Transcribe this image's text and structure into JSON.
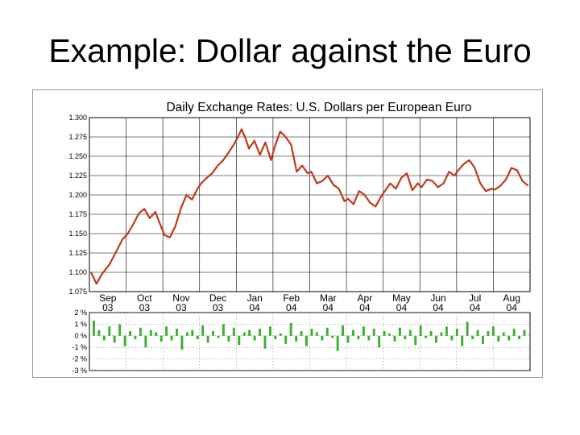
{
  "slide": {
    "title": "Example: Dollar against the Euro"
  },
  "chart_data": [
    {
      "type": "line",
      "title": "Daily Exchange Rates: U.S. Dollars per European Euro",
      "xlabel": "",
      "ylabel": "",
      "ylim": [
        1.075,
        1.3
      ],
      "ytick_labels": [
        "1.300",
        "1.275",
        "1.250",
        "1.225",
        "1.200",
        "1.175",
        "1.150",
        "1.125",
        "1.100",
        "1.075"
      ],
      "ytick_values": [
        1.3,
        1.275,
        1.25,
        1.225,
        1.2,
        1.175,
        1.15,
        1.125,
        1.1,
        1.075
      ],
      "month_labels": [
        {
          "month": "Sep",
          "year": "03"
        },
        {
          "month": "Oct",
          "year": "03"
        },
        {
          "month": "Nov",
          "year": "03"
        },
        {
          "month": "Dec",
          "year": "03"
        },
        {
          "month": "Jan",
          "year": "04"
        },
        {
          "month": "Feb",
          "year": "04"
        },
        {
          "month": "Mar",
          "year": "04"
        },
        {
          "month": "Apr",
          "year": "04"
        },
        {
          "month": "May",
          "year": "04"
        },
        {
          "month": "Jun",
          "year": "04"
        },
        {
          "month": "Jul",
          "year": "04"
        },
        {
          "month": "Aug",
          "year": "04"
        }
      ],
      "grid": true,
      "line_color": "#c0391b",
      "series": [
        {
          "x": [
            0,
            0.15,
            0.3,
            0.5,
            0.7,
            0.85,
            1,
            1.15,
            1.3,
            1.45,
            1.6,
            1.75,
            1.9,
            2,
            2.15,
            2.3,
            2.45,
            2.6,
            2.75,
            2.9,
            3,
            3.15,
            3.3,
            3.45,
            3.6,
            3.75,
            3.9,
            4,
            4.1,
            4.2,
            4.3,
            4.45,
            4.6,
            4.75,
            4.9,
            5,
            5.15,
            5.3,
            5.45,
            5.6,
            5.75,
            5.9,
            6,
            6.15,
            6.3,
            6.45,
            6.6,
            6.75,
            6.9,
            7,
            7.15,
            7.3,
            7.45,
            7.6,
            7.75,
            7.9,
            8,
            8.15,
            8.3,
            8.45,
            8.6,
            8.75,
            8.9,
            9,
            9.15,
            9.3,
            9.45,
            9.6,
            9.75,
            9.9,
            10,
            10.15,
            10.3,
            10.45,
            10.6,
            10.75,
            10.9,
            11,
            11.15,
            11.3,
            11.45,
            11.6,
            11.75,
            11.9
          ],
          "y": [
            1.1,
            1.085,
            1.098,
            1.11,
            1.128,
            1.142,
            1.15,
            1.162,
            1.176,
            1.182,
            1.17,
            1.178,
            1.16,
            1.148,
            1.145,
            1.16,
            1.183,
            1.2,
            1.194,
            1.208,
            1.215,
            1.222,
            1.228,
            1.238,
            1.245,
            1.255,
            1.266,
            1.275,
            1.285,
            1.274,
            1.26,
            1.27,
            1.252,
            1.268,
            1.245,
            1.262,
            1.282,
            1.275,
            1.265,
            1.23,
            1.238,
            1.228,
            1.23,
            1.215,
            1.218,
            1.225,
            1.213,
            1.208,
            1.192,
            1.195,
            1.188,
            1.205,
            1.2,
            1.19,
            1.185,
            1.198,
            1.205,
            1.215,
            1.208,
            1.222,
            1.228,
            1.206,
            1.215,
            1.21,
            1.22,
            1.218,
            1.21,
            1.215,
            1.23,
            1.225,
            1.232,
            1.24,
            1.245,
            1.235,
            1.215,
            1.205,
            1.208,
            1.207,
            1.212,
            1.22,
            1.235,
            1.232,
            1.218,
            1.212
          ]
        }
      ]
    },
    {
      "type": "bar",
      "title": "",
      "xlabel": "",
      "ylabel": "",
      "ylim": [
        -3,
        2
      ],
      "ytick_labels": [
        "2 %",
        "1 %",
        "0 %",
        "-1 %",
        "-2 %",
        "-3 %"
      ],
      "ytick_values": [
        2,
        1,
        0,
        -1,
        -2,
        -3
      ],
      "bar_color": "#3ab02e",
      "values": [
        1.3,
        0.5,
        -0.4,
        0.8,
        -0.6,
        1.0,
        -0.9,
        0.4,
        -0.3,
        0.7,
        -1.0,
        0.5,
        0.3,
        -0.5,
        0.8,
        -0.4,
        0.6,
        -1.2,
        0.3,
        0.5,
        -0.3,
        0.9,
        -0.6,
        0.4,
        -0.2,
        1.0,
        -0.5,
        0.7,
        -0.8,
        0.3,
        0.5,
        -0.4,
        0.6,
        -1.1,
        0.8,
        -0.3,
        0.2,
        -0.7,
        1.1,
        -0.5,
        0.4,
        -0.9,
        0.6,
        0.3,
        -0.4,
        0.7,
        -0.2,
        -1.3,
        0.9,
        -0.6,
        0.5,
        -0.3,
        0.8,
        -0.4,
        0.6,
        -1.0,
        0.4,
        0.2,
        -0.5,
        0.7,
        -0.3,
        0.5,
        -0.8,
        0.9,
        -0.2,
        0.4,
        -0.6,
        0.3,
        0.8,
        -0.4,
        0.6,
        -0.9,
        1.2,
        -0.3,
        0.5,
        -0.7,
        0.4,
        0.8,
        -0.5,
        0.3,
        -0.4,
        0.6,
        -0.3,
        0.5
      ]
    }
  ]
}
